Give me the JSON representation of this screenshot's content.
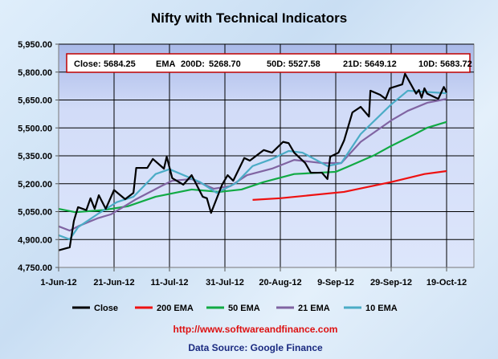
{
  "chart_data": {
    "type": "line",
    "title": "Nifty with Technical Indicators",
    "xlabel": "",
    "ylabel": "",
    "x_unit": "days since 1-Jun-12",
    "xlim": [
      0,
      140
    ],
    "ylim": [
      4750,
      5950
    ],
    "yticks": [
      4750,
      4900,
      5050,
      5200,
      5350,
      5500,
      5650,
      5800,
      5950
    ],
    "ytick_labels": [
      "4,750.00",
      "4,900.00",
      "5,050.00",
      "5,200.00",
      "5,350.00",
      "5,500.00",
      "5,650.00",
      "5,800.00",
      "5,950.00"
    ],
    "xticks": [
      0,
      20,
      40,
      60,
      80,
      100,
      120,
      140
    ],
    "xtick_labels": [
      "1-Jun-12",
      "21-Jun-12",
      "11-Jul-12",
      "31-Jul-12",
      "20-Aug-12",
      "9-Sep-12",
      "29-Sep-12",
      "19-Oct-12"
    ],
    "grid": true,
    "legend_position": "bottom",
    "info_box": {
      "close_label": "Close:",
      "close_value": "5684.25",
      "ema_label": "EMA",
      "ema200_label": "200D:",
      "ema200_value": "5268.70",
      "ema50_label": "50D:",
      "ema50_value": "5527.58",
      "ema21_label": "21D:",
      "ema21_value": "5649.12",
      "ema10_label": "10D:",
      "ema10_value": "5683.72"
    },
    "series": [
      {
        "name": "Close",
        "color": "#000000",
        "points": [
          [
            0,
            4842
          ],
          [
            4,
            4858
          ],
          [
            5.5,
            5000
          ],
          [
            7,
            5074
          ],
          [
            10,
            5058
          ],
          [
            11.5,
            5122
          ],
          [
            13,
            5065
          ],
          [
            14.5,
            5138
          ],
          [
            17,
            5065
          ],
          [
            20,
            5166
          ],
          [
            24,
            5117
          ],
          [
            27,
            5151
          ],
          [
            28,
            5285
          ],
          [
            32,
            5285
          ],
          [
            34,
            5333
          ],
          [
            38,
            5281
          ],
          [
            39,
            5345
          ],
          [
            41,
            5230
          ],
          [
            45,
            5195
          ],
          [
            48,
            5246
          ],
          [
            52,
            5130
          ],
          [
            53.5,
            5122
          ],
          [
            55,
            5043
          ],
          [
            59,
            5195
          ],
          [
            61,
            5246
          ],
          [
            63,
            5216
          ],
          [
            67,
            5338
          ],
          [
            69,
            5324
          ],
          [
            74,
            5381
          ],
          [
            77,
            5367
          ],
          [
            81,
            5425
          ],
          [
            83,
            5418
          ],
          [
            85,
            5367
          ],
          [
            89,
            5311
          ],
          [
            91,
            5259
          ],
          [
            95,
            5259
          ],
          [
            97,
            5225
          ],
          [
            98,
            5345
          ],
          [
            101,
            5367
          ],
          [
            103,
            5432
          ],
          [
            106,
            5583
          ],
          [
            109,
            5613
          ],
          [
            112,
            5561
          ],
          [
            112.5,
            5700
          ],
          [
            116,
            5678
          ],
          [
            118,
            5656
          ],
          [
            119.5,
            5713
          ],
          [
            124,
            5734
          ],
          [
            125,
            5791
          ],
          [
            129,
            5684
          ],
          [
            130,
            5704
          ],
          [
            131,
            5662
          ],
          [
            132,
            5713
          ],
          [
            133,
            5684
          ],
          [
            137,
            5656
          ],
          [
            139,
            5720
          ],
          [
            140,
            5690
          ]
        ]
      },
      {
        "name": "200 EMA",
        "color": "#ee1111",
        "points": [
          [
            70,
            5113
          ],
          [
            80,
            5122
          ],
          [
            103,
            5156
          ],
          [
            120,
            5209
          ],
          [
            132,
            5252
          ],
          [
            140,
            5268
          ]
        ]
      },
      {
        "name": "50 EMA",
        "color": "#11aa44",
        "points": [
          [
            0,
            5065
          ],
          [
            6,
            5047
          ],
          [
            16,
            5058
          ],
          [
            25,
            5079
          ],
          [
            35,
            5130
          ],
          [
            48,
            5169
          ],
          [
            58,
            5156
          ],
          [
            66,
            5169
          ],
          [
            74,
            5209
          ],
          [
            85,
            5252
          ],
          [
            100,
            5264
          ],
          [
            104,
            5289
          ],
          [
            114,
            5354
          ],
          [
            120,
            5403
          ],
          [
            128,
            5462
          ],
          [
            133,
            5501
          ],
          [
            140,
            5532
          ]
        ]
      },
      {
        "name": "21 EMA",
        "color": "#8064a2",
        "points": [
          [
            0,
            4971
          ],
          [
            4,
            4948
          ],
          [
            7,
            4971
          ],
          [
            14,
            5014
          ],
          [
            19,
            5036
          ],
          [
            28,
            5117
          ],
          [
            37,
            5187
          ],
          [
            41,
            5216
          ],
          [
            48,
            5225
          ],
          [
            56,
            5173
          ],
          [
            62,
            5187
          ],
          [
            68,
            5246
          ],
          [
            77,
            5281
          ],
          [
            85,
            5328
          ],
          [
            95,
            5311
          ],
          [
            102,
            5311
          ],
          [
            109,
            5425
          ],
          [
            120,
            5540
          ],
          [
            126,
            5592
          ],
          [
            133,
            5635
          ],
          [
            140,
            5656
          ]
        ]
      },
      {
        "name": "10 EMA",
        "color": "#4bacc6",
        "points": [
          [
            0,
            4923
          ],
          [
            4,
            4901
          ],
          [
            7,
            4966
          ],
          [
            14,
            5036
          ],
          [
            21,
            5101
          ],
          [
            27,
            5130
          ],
          [
            35,
            5252
          ],
          [
            40,
            5278
          ],
          [
            51,
            5209
          ],
          [
            57,
            5151
          ],
          [
            64,
            5203
          ],
          [
            70,
            5295
          ],
          [
            77,
            5333
          ],
          [
            83,
            5376
          ],
          [
            88,
            5367
          ],
          [
            97,
            5295
          ],
          [
            102,
            5311
          ],
          [
            109,
            5467
          ],
          [
            120,
            5626
          ],
          [
            126,
            5700
          ],
          [
            140,
            5686
          ]
        ]
      }
    ]
  },
  "footer": {
    "url": "http://www.softwareandfinance.com",
    "source": "Data Source: Google Finance"
  },
  "colors": {
    "url": "#dd1111",
    "source": "#1a2a80",
    "plot_top": "#a9b9e8",
    "plot_bottom": "#dde6fb"
  }
}
